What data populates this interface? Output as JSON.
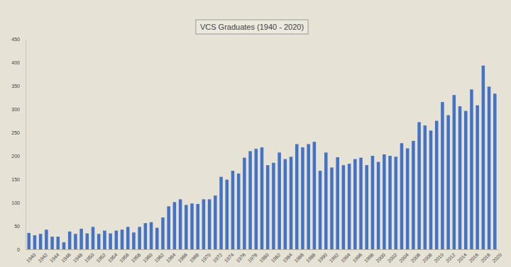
{
  "chart_data": {
    "type": "bar",
    "title": "VCS Graduates (1940 - 2020)",
    "categories": [
      "1940",
      null,
      "1942",
      null,
      "1944",
      null,
      "1946",
      null,
      "1948",
      null,
      "1950",
      null,
      "1952",
      null,
      "1954",
      null,
      "1956",
      null,
      "1958",
      null,
      "1960",
      null,
      "1962",
      null,
      "1964",
      null,
      "1966",
      null,
      "1968",
      null,
      "1970",
      null,
      "1972",
      null,
      "1974",
      null,
      "1976",
      null,
      "1978",
      null,
      "1980",
      null,
      "1982",
      null,
      "1984",
      null,
      "1986",
      null,
      "1988",
      null,
      "1990",
      null,
      "1992",
      null,
      "1994",
      null,
      "1996",
      null,
      "1998",
      null,
      "2000",
      null,
      "2002",
      null,
      "2004",
      null,
      "2006",
      null,
      "2008",
      null,
      "2010",
      null,
      "2012",
      null,
      "2014",
      null,
      "2016",
      null,
      "2018",
      null,
      "2020"
    ],
    "values": [
      35,
      30,
      33,
      42,
      27,
      27,
      15,
      38,
      33,
      44,
      34,
      48,
      33,
      40,
      34,
      40,
      42,
      48,
      36,
      48,
      56,
      58,
      46,
      68,
      92,
      101,
      107,
      95,
      98,
      97,
      107,
      107,
      115,
      155,
      149,
      168,
      162,
      196,
      210,
      215,
      218,
      180,
      185,
      207,
      193,
      198,
      225,
      218,
      225,
      230,
      168,
      207,
      175,
      197,
      180,
      183,
      193,
      196,
      180,
      200,
      187,
      203,
      200,
      198,
      227,
      216,
      232,
      272,
      265,
      254,
      275,
      315,
      287,
      330,
      306,
      296,
      342,
      308,
      393,
      348,
      333
    ],
    "color": "#4472c4",
    "ylim": [
      0,
      450
    ],
    "yticks": [
      0,
      50,
      100,
      150,
      200,
      250,
      300,
      350,
      400,
      450
    ],
    "grid": false
  }
}
